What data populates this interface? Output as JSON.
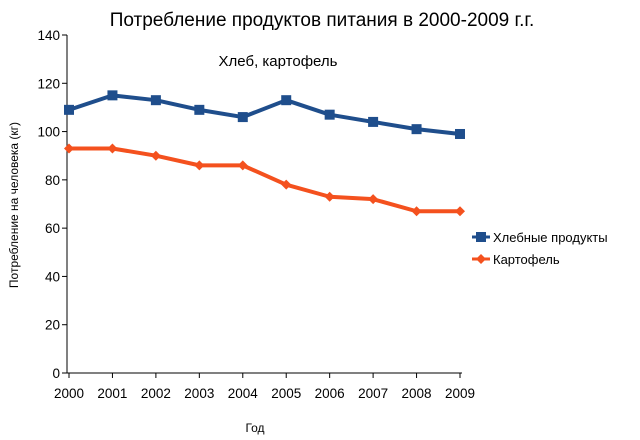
{
  "chart_data": {
    "type": "line",
    "title": "Потребление продуктов питания в 2000-2009  г.г.",
    "subtitle": "Хлеб, картофель",
    "xlabel": "Год",
    "ylabel": "Потребление на человека (кг)",
    "categories": [
      "2000",
      "2001",
      "2002",
      "2003",
      "2004",
      "2005",
      "2006",
      "2007",
      "2008",
      "2009"
    ],
    "ylim": [
      0,
      140
    ],
    "yticks": [
      0,
      20,
      40,
      60,
      80,
      100,
      120,
      140
    ],
    "grid": false,
    "legend_position": "right",
    "series": [
      {
        "name": "Хлебные продукты",
        "color": "#1f4e8c",
        "marker": "square",
        "values": [
          109,
          115,
          113,
          109,
          106,
          113,
          107,
          104,
          101,
          99
        ]
      },
      {
        "name": "Картофель",
        "color": "#f4511e",
        "marker": "diamond",
        "values": [
          93,
          93,
          90,
          86,
          86,
          78,
          73,
          72,
          67,
          67
        ]
      }
    ]
  }
}
